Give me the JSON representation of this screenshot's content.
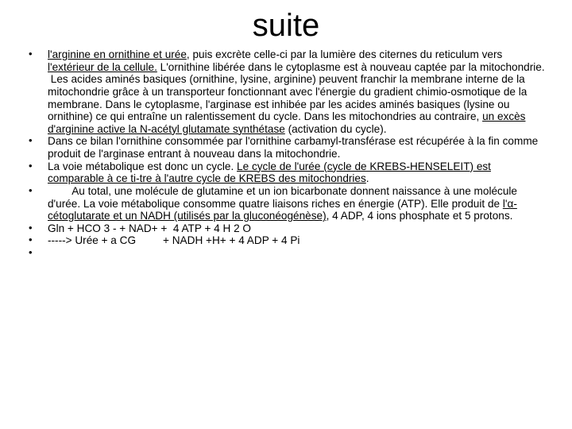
{
  "title": "suite",
  "bullets": [
    {
      "html": "<span class='u'>l'arginine en ornithine et urée</span>, puis excrète celle-ci par la lumière des citernes du reticulum vers <span class='u'>l'extérieur de la cellule.</span> L'ornithine libérée dans le cytoplasme est à nouveau captée par la mitochondrie.<br><span class='hang'>&nbsp;Les acides aminés basiques (ornithine, lysine, arginine) peuvent franchir la membrane interne de la mitochondrie grâce à un transporteur fonctionnant avec l'énergie du gradient chimio-osmotique de la membrane. Dans le cytoplasme, l'arginase est inhibée par les acides aminés basiques (lysine ou ornithine) ce qui entraîne un ralentissement du cycle. Dans les mitochondries au contraire, <span class='u'>un excès d'arginine active la N-acétyl glutamate synthétase</span> (activation du cycle).</span>"
    },
    {
      "html": "Dans ce bilan l'ornithine consommée par l'ornithine carbamyl-transférase est récupérée à la fin comme produit de l'arginase entrant à nouveau dans la mitochondrie."
    },
    {
      "html": "La voie métabolique est donc un cycle. <span class='u'>Le cycle de l'urée (cycle de KREBS-HENSELEIT) est comparable à ce ti-tre à l'autre cycle de KREBS des mitochondries</span>."
    },
    {
      "html": "&nbsp;&nbsp;&nbsp;&nbsp;&nbsp;&nbsp;&nbsp;&nbsp;Au total, une molécule de glutamine et un ion bicarbonate donnent naissance à une molécule d'urée. La voie métabolique consomme quatre liaisons riches en énergie (ATP). Elle produit de <span class='u'>l'α-cétoglutarate et un NADH (utilisés par la gluconéogénèse)</span>, 4 ADP, 4 ions phosphate et 5 protons."
    },
    {
      "html": "Gln + HCO 3 - + NAD+ +&nbsp; 4 ATP + 4 H 2 O"
    },
    {
      "html": "-----&gt; Urée + a CG&nbsp;&nbsp;&nbsp;&nbsp;&nbsp;&nbsp;&nbsp;&nbsp;&nbsp;+ NADH +H+ + 4 ADP + 4 Pi"
    },
    {
      "html": ""
    }
  ]
}
